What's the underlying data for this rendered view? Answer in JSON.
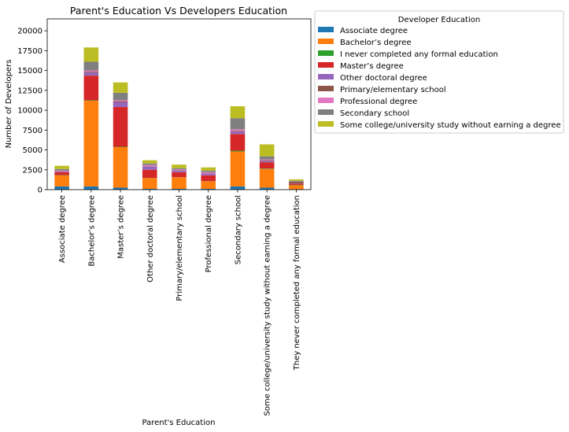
{
  "chart_data": {
    "type": "bar",
    "stacked": true,
    "title": "Parent's Education Vs Developers Education",
    "xlabel": "Parent's Education",
    "ylabel": "Number of Developers",
    "ylim": [
      0,
      21500
    ],
    "yticks": [
      0,
      2500,
      5000,
      7500,
      10000,
      12500,
      15000,
      17500,
      20000
    ],
    "grid": false,
    "legend_title": "Developer Education",
    "legend_position": "outside-right",
    "categories": [
      "Associate degree",
      "Bachelor’s degree",
      "Master’s degree",
      "Other doctoral degree",
      "Primary/elementary school",
      "Professional degree",
      "Secondary school",
      "Some college/university study without earning a degree",
      "They never completed any formal education"
    ],
    "series": [
      {
        "name": "Associate degree",
        "color": "#1f77b4",
        "values": [
          400,
          400,
          250,
          100,
          100,
          100,
          400,
          250,
          50
        ]
      },
      {
        "name": "Bachelor’s degree",
        "color": "#ff7f0e",
        "values": [
          1400,
          10800,
          5100,
          1350,
          1450,
          950,
          4400,
          2350,
          500
        ]
      },
      {
        "name": "I never completed any formal education",
        "color": "#2ca02c",
        "values": [
          30,
          50,
          50,
          20,
          20,
          20,
          100,
          60,
          50
        ]
      },
      {
        "name": "Master’s degree",
        "color": "#d62728",
        "values": [
          370,
          3100,
          5000,
          1030,
          630,
          730,
          2100,
          790,
          150
        ]
      },
      {
        "name": "Other doctoral degree",
        "color": "#9467bd",
        "values": [
          100,
          400,
          600,
          400,
          200,
          200,
          300,
          150,
          50
        ]
      },
      {
        "name": "Primary/elementary school",
        "color": "#8c564b",
        "values": [
          30,
          100,
          100,
          50,
          60,
          30,
          100,
          100,
          200
        ]
      },
      {
        "name": "Professional degree",
        "color": "#e377c2",
        "values": [
          80,
          150,
          150,
          150,
          100,
          170,
          200,
          100,
          20
        ]
      },
      {
        "name": "Secondary school",
        "color": "#7f7f7f",
        "values": [
          190,
          1100,
          950,
          200,
          140,
          200,
          1400,
          400,
          100
        ]
      },
      {
        "name": "Some college/university study without earning a degree",
        "color": "#bcbd22",
        "values": [
          400,
          1800,
          1300,
          400,
          450,
          400,
          1500,
          1500,
          180
        ]
      }
    ]
  }
}
